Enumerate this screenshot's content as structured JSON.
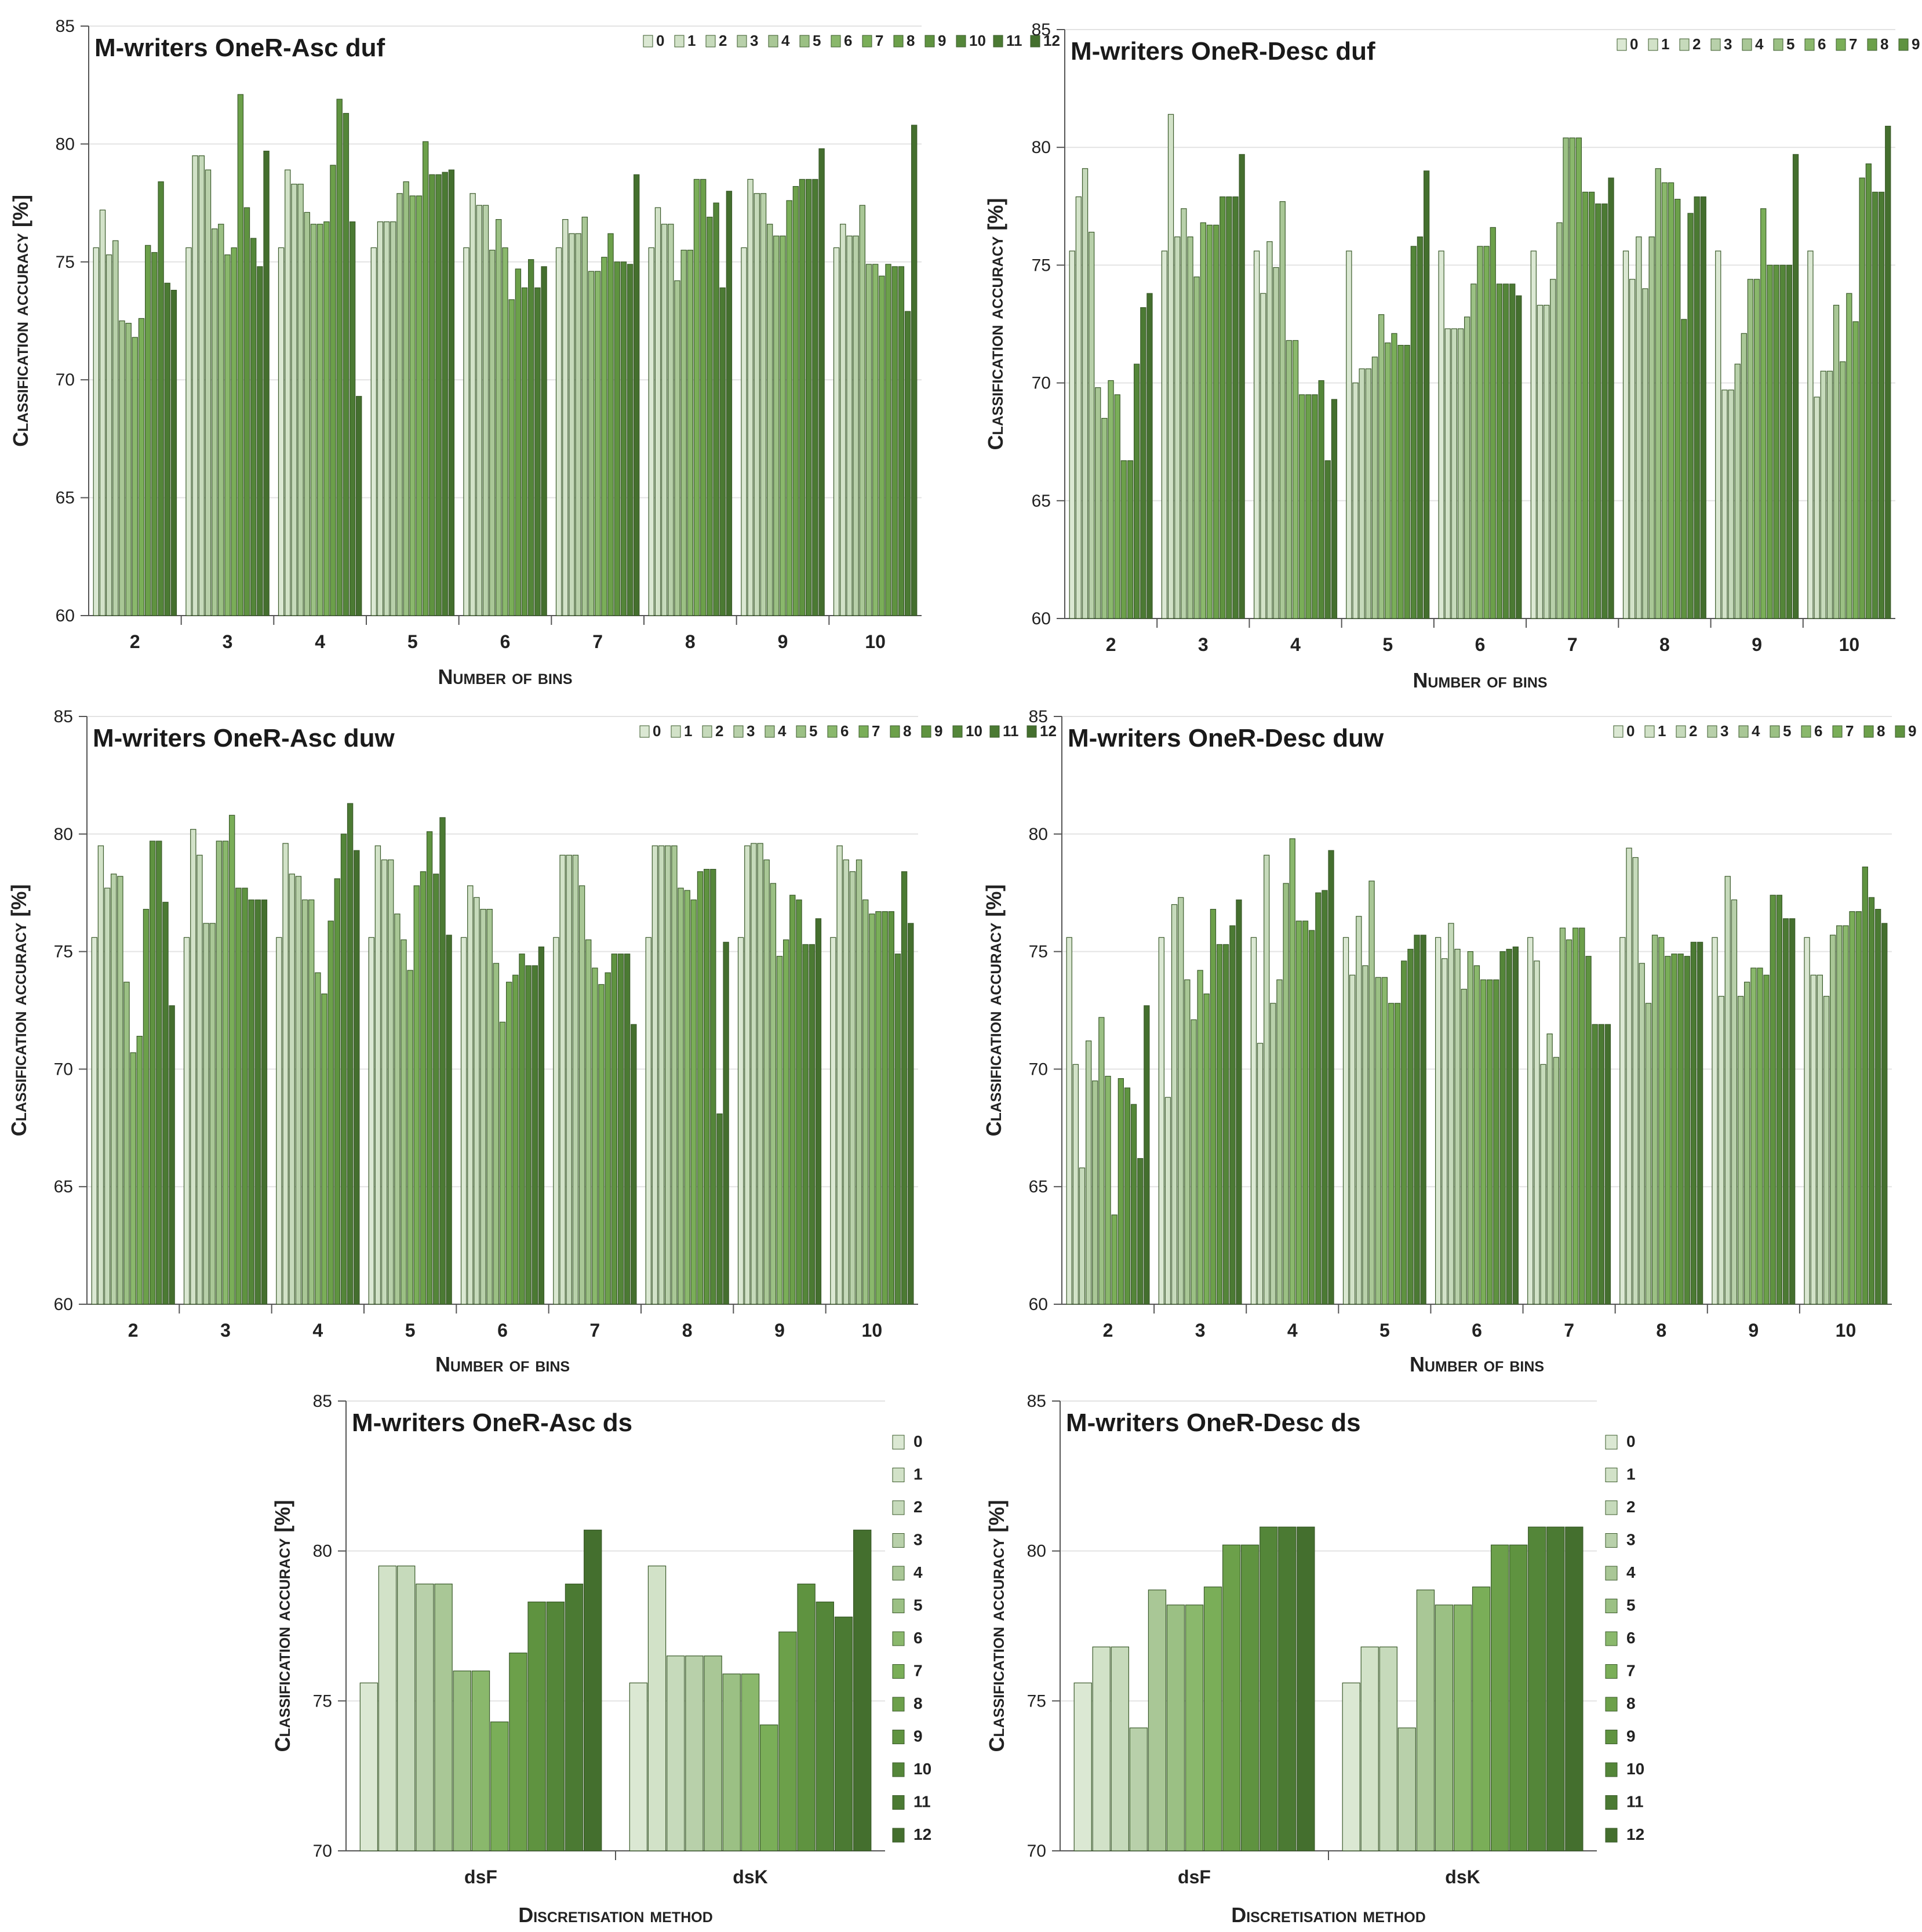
{
  "series_names": [
    "0",
    "1",
    "2",
    "3",
    "4",
    "5",
    "6",
    "7",
    "8",
    "9",
    "10",
    "11",
    "12"
  ],
  "series_colors": [
    "#dbe8d3",
    "#d2e2c8",
    "#c6dabb",
    "#b8d0aa",
    "#a9c796",
    "#9bc084",
    "#8ab86c",
    "#7aae58",
    "#6ca04a",
    "#5f9340",
    "#548639",
    "#4b7a33",
    "#446f2e"
  ],
  "chart_data": [
    {
      "type": "bar",
      "title": "M-writers OneR-Asc duf",
      "xlabel": "Number of bins",
      "ylabel": "Classification accuracy [%]",
      "ylim": [
        60,
        85
      ],
      "yticks": [
        "60",
        "65",
        "70",
        "75",
        "80",
        "85"
      ],
      "categories": [
        "2",
        "3",
        "4",
        "5",
        "6",
        "7",
        "8",
        "9",
        "10"
      ],
      "legend": "top-right-row",
      "values": [
        [
          75.6,
          77.2,
          75.3,
          75.9,
          72.5,
          72.4,
          71.8,
          72.6,
          75.7,
          75.4,
          78.4,
          74.1,
          73.8
        ],
        [
          75.6,
          79.5,
          79.5,
          78.9,
          76.4,
          76.6,
          75.3,
          75.6,
          82.1,
          77.3,
          76.0,
          74.8,
          79.7
        ],
        [
          75.6,
          78.9,
          78.3,
          78.3,
          77.1,
          76.6,
          76.6,
          76.7,
          79.1,
          81.9,
          81.3,
          76.7,
          69.3
        ],
        [
          75.6,
          76.7,
          76.7,
          76.7,
          77.9,
          78.4,
          77.8,
          77.8,
          80.1,
          78.7,
          78.7,
          78.8,
          78.9
        ],
        [
          75.6,
          77.9,
          77.4,
          77.4,
          75.5,
          76.8,
          75.6,
          73.4,
          74.7,
          73.9,
          75.1,
          73.9,
          74.8
        ],
        [
          75.6,
          76.8,
          76.2,
          76.2,
          76.9,
          74.6,
          74.6,
          75.2,
          76.2,
          75.0,
          75.0,
          74.9,
          78.7
        ],
        [
          75.6,
          77.3,
          76.6,
          76.6,
          74.2,
          75.5,
          75.5,
          78.5,
          78.5,
          76.9,
          77.5,
          73.9,
          78.0
        ],
        [
          75.6,
          78.5,
          77.9,
          77.9,
          76.6,
          76.1,
          76.1,
          77.6,
          78.2,
          78.5,
          78.5,
          78.5,
          79.8
        ],
        [
          75.6,
          76.6,
          76.1,
          76.1,
          77.4,
          74.9,
          74.9,
          74.4,
          74.9,
          74.8,
          74.8,
          72.9,
          80.8
        ]
      ]
    },
    {
      "type": "bar",
      "title": "M-writers OneR-Desc duf",
      "xlabel": "Number of bins",
      "ylabel": "Classification accuracy [%]",
      "ylim": [
        60,
        85
      ],
      "yticks": [
        "60",
        "65",
        "70",
        "75",
        "80",
        "85"
      ],
      "categories": [
        "2",
        "3",
        "4",
        "5",
        "6",
        "7",
        "8",
        "9",
        "10"
      ],
      "legend": "top-right-row",
      "values": [
        [
          75.6,
          77.9,
          79.1,
          76.4,
          69.8,
          68.5,
          70.1,
          69.5,
          66.7,
          66.7,
          70.8,
          73.2,
          73.8
        ],
        [
          75.6,
          81.4,
          76.2,
          77.4,
          76.2,
          74.5,
          76.8,
          76.7,
          76.7,
          77.9,
          77.9,
          77.9,
          79.7
        ],
        [
          75.6,
          73.8,
          76.0,
          74.9,
          77.7,
          71.8,
          71.8,
          69.5,
          69.5,
          69.5,
          70.1,
          66.7,
          69.3
        ],
        [
          75.6,
          70.0,
          70.6,
          70.6,
          71.1,
          72.9,
          71.7,
          72.1,
          71.6,
          71.6,
          75.8,
          76.2,
          79.0
        ],
        [
          75.6,
          72.3,
          72.3,
          72.3,
          72.8,
          74.2,
          75.8,
          75.8,
          76.6,
          74.2,
          74.2,
          74.2,
          73.7
        ],
        [
          75.6,
          73.3,
          73.3,
          74.4,
          76.8,
          80.4,
          80.4,
          80.4,
          78.1,
          78.1,
          77.6,
          77.6,
          78.7
        ],
        [
          75.6,
          74.4,
          76.2,
          74.0,
          76.2,
          79.1,
          78.5,
          78.5,
          77.8,
          72.7,
          77.2,
          77.9,
          77.9
        ],
        [
          75.6,
          69.7,
          69.7,
          70.8,
          72.1,
          74.4,
          74.4,
          77.4,
          75.0,
          75.0,
          75.0,
          75.0,
          79.7
        ],
        [
          75.6,
          69.4,
          70.5,
          70.5,
          73.3,
          70.9,
          73.8,
          72.6,
          78.7,
          79.3,
          78.1,
          78.1,
          80.9
        ]
      ]
    },
    {
      "type": "bar",
      "title": "M-writers OneR-Asc duw",
      "xlabel": "Number of bins",
      "ylabel": "Classification accuracy [%]",
      "ylim": [
        60,
        85
      ],
      "yticks": [
        "60",
        "65",
        "70",
        "75",
        "80",
        "85"
      ],
      "categories": [
        "2",
        "3",
        "4",
        "5",
        "6",
        "7",
        "8",
        "9",
        "10"
      ],
      "legend": "top-right-row",
      "values": [
        [
          75.6,
          79.5,
          77.7,
          78.3,
          78.2,
          73.7,
          70.7,
          71.4,
          76.8,
          79.7,
          79.7,
          77.1,
          72.7
        ],
        [
          75.6,
          80.2,
          79.1,
          76.2,
          76.2,
          79.7,
          79.7,
          80.8,
          77.7,
          77.7,
          77.2,
          77.2,
          77.2
        ],
        [
          75.6,
          79.6,
          78.3,
          78.2,
          77.2,
          77.2,
          74.1,
          73.2,
          76.3,
          78.1,
          80.0,
          81.3,
          79.3
        ],
        [
          75.6,
          79.5,
          78.9,
          78.9,
          76.6,
          75.5,
          74.2,
          77.8,
          78.4,
          80.1,
          78.3,
          80.7,
          75.7
        ],
        [
          75.6,
          77.8,
          77.3,
          76.8,
          76.8,
          74.5,
          72.0,
          73.7,
          74.0,
          74.9,
          74.4,
          74.4,
          75.2
        ],
        [
          75.6,
          79.1,
          79.1,
          79.1,
          77.8,
          75.5,
          74.3,
          73.6,
          74.1,
          74.9,
          74.9,
          74.9,
          71.9
        ],
        [
          75.6,
          79.5,
          79.5,
          79.5,
          79.5,
          77.7,
          77.6,
          77.2,
          78.4,
          78.5,
          78.5,
          68.1,
          75.4
        ],
        [
          75.6,
          79.5,
          79.6,
          79.6,
          78.9,
          77.9,
          74.8,
          75.5,
          77.4,
          77.2,
          75.3,
          75.3,
          76.4
        ],
        [
          75.6,
          79.5,
          78.9,
          78.4,
          78.9,
          77.2,
          76.6,
          76.7,
          76.7,
          76.7,
          74.9,
          78.4,
          76.2
        ]
      ]
    },
    {
      "type": "bar",
      "title": "M-writers OneR-Desc duw",
      "xlabel": "Number of bins",
      "ylabel": "Classification accuracy [%]",
      "ylim": [
        60,
        85
      ],
      "yticks": [
        "60",
        "65",
        "70",
        "75",
        "80",
        "85"
      ],
      "categories": [
        "2",
        "3",
        "4",
        "5",
        "6",
        "7",
        "8",
        "9",
        "10"
      ],
      "legend": "top-right-row",
      "values": [
        [
          75.6,
          70.2,
          65.8,
          71.2,
          69.5,
          72.2,
          69.7,
          63.8,
          69.6,
          69.2,
          68.5,
          66.2,
          72.7
        ],
        [
          75.6,
          68.8,
          77.0,
          77.3,
          73.8,
          72.1,
          74.2,
          73.2,
          76.8,
          75.3,
          75.3,
          76.1,
          77.2
        ],
        [
          75.6,
          71.1,
          79.1,
          72.8,
          73.8,
          77.9,
          79.8,
          76.3,
          76.3,
          75.9,
          77.5,
          77.6,
          79.3
        ],
        [
          75.6,
          74.0,
          76.5,
          74.4,
          78.0,
          73.9,
          73.9,
          72.8,
          72.8,
          74.6,
          75.1,
          75.7,
          75.7
        ],
        [
          75.6,
          74.7,
          76.2,
          75.1,
          73.4,
          75.0,
          74.4,
          73.8,
          73.8,
          73.8,
          75.0,
          75.1,
          75.2
        ],
        [
          75.6,
          74.6,
          70.2,
          71.5,
          70.5,
          76.0,
          75.5,
          76.0,
          76.0,
          74.8,
          71.9,
          71.9,
          71.9
        ],
        [
          75.6,
          79.4,
          79.0,
          74.5,
          72.8,
          75.7,
          75.6,
          74.8,
          74.9,
          74.9,
          74.8,
          75.4,
          75.4
        ],
        [
          75.6,
          73.1,
          78.2,
          77.2,
          73.1,
          73.7,
          74.3,
          74.3,
          74.0,
          77.4,
          77.4,
          76.4,
          76.4
        ],
        [
          75.6,
          74.0,
          74.0,
          73.1,
          75.7,
          76.1,
          76.1,
          76.7,
          76.7,
          78.6,
          77.3,
          76.8,
          76.2
        ]
      ]
    },
    {
      "type": "bar",
      "title": "M-writers OneR-Asc ds",
      "xlabel": "Discretisation method",
      "ylabel": "Classification accuracy [%]",
      "ylim": [
        70,
        85
      ],
      "yticks": [
        "70",
        "75",
        "80",
        "85"
      ],
      "categories": [
        "dsF",
        "dsK"
      ],
      "legend": "right-column",
      "values": [
        [
          75.6,
          79.5,
          79.5,
          78.9,
          78.9,
          76.0,
          76.0,
          74.3,
          76.6,
          78.3,
          78.3,
          78.9,
          80.7
        ],
        [
          75.6,
          79.5,
          76.5,
          76.5,
          76.5,
          75.9,
          75.9,
          74.2,
          77.3,
          78.9,
          78.3,
          77.8,
          80.7
        ]
      ]
    },
    {
      "type": "bar",
      "title": "M-writers OneR-Desc ds",
      "xlabel": "Discretisation method",
      "ylabel": "Classification accuracy [%]",
      "ylim": [
        70,
        85
      ],
      "yticks": [
        "70",
        "75",
        "80",
        "85"
      ],
      "categories": [
        "dsF",
        "dsK"
      ],
      "legend": "right-column",
      "values": [
        [
          75.6,
          76.8,
          76.8,
          74.1,
          78.7,
          78.2,
          78.2,
          78.8,
          80.2,
          80.2,
          80.8,
          80.8,
          80.8
        ],
        [
          75.6,
          76.8,
          76.8,
          74.1,
          78.7,
          78.2,
          78.2,
          78.8,
          80.2,
          80.2,
          80.8,
          80.8,
          80.8
        ]
      ]
    }
  ]
}
